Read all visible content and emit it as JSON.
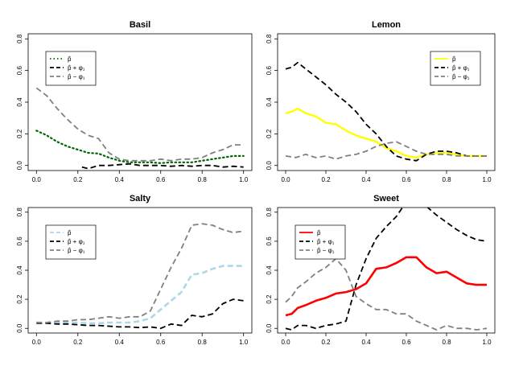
{
  "chart_data": [
    {
      "type": "line",
      "title": "Basil",
      "xlim": [
        0,
        1
      ],
      "ylim": [
        0,
        0.8
      ],
      "x_ticks": [
        "0.0",
        "0.2",
        "0.4",
        "0.6",
        "0.8",
        "1.0"
      ],
      "y_ticks": [
        "0.0",
        "0.2",
        "0.4",
        "0.6",
        "0.8"
      ],
      "legend_position": "top-left",
      "legend": [
        "p̂",
        "p̂ + φ₁",
        "p̂ − φ₁"
      ],
      "series": [
        {
          "name": "p̂",
          "color": "#006400",
          "dash": "dotted",
          "width": 2.2,
          "x": [
            0.0,
            0.05,
            0.1,
            0.15,
            0.2,
            0.25,
            0.3,
            0.35,
            0.4,
            0.45,
            0.5,
            0.55,
            0.6,
            0.65,
            0.7,
            0.75,
            0.8,
            0.85,
            0.9,
            0.95,
            1.0
          ],
          "y": [
            0.22,
            0.19,
            0.15,
            0.12,
            0.1,
            0.08,
            0.075,
            0.05,
            0.03,
            0.02,
            0.02,
            0.02,
            0.015,
            0.02,
            0.02,
            0.02,
            0.03,
            0.04,
            0.05,
            0.06,
            0.06
          ]
        },
        {
          "name": "p̂ + φ₁",
          "color": "#000000",
          "dash": "dashed",
          "width": 1.8,
          "x": [
            0.22,
            0.25,
            0.3,
            0.35,
            0.4,
            0.45,
            0.5,
            0.55,
            0.6,
            0.65,
            0.7,
            0.75,
            0.8,
            0.85,
            0.9,
            0.95,
            1.0
          ],
          "y": [
            -0.01,
            -0.02,
            0.0,
            0.0,
            0.005,
            0.01,
            0.0,
            0.0,
            0.0,
            -0.005,
            0.0,
            -0.005,
            0.0,
            0.0,
            -0.01,
            -0.005,
            -0.01
          ]
        },
        {
          "name": "p̂ − φ₁",
          "color": "#808080",
          "dash": "dashed",
          "width": 1.8,
          "x": [
            0.0,
            0.05,
            0.1,
            0.15,
            0.2,
            0.25,
            0.3,
            0.35,
            0.4,
            0.45,
            0.5,
            0.55,
            0.6,
            0.65,
            0.7,
            0.75,
            0.8,
            0.85,
            0.9,
            0.95,
            1.0
          ],
          "y": [
            0.49,
            0.44,
            0.36,
            0.29,
            0.23,
            0.19,
            0.17,
            0.08,
            0.04,
            0.03,
            0.03,
            0.03,
            0.04,
            0.03,
            0.04,
            0.04,
            0.05,
            0.08,
            0.1,
            0.13,
            0.13
          ]
        }
      ]
    },
    {
      "type": "line",
      "title": "Lemon",
      "xlim": [
        0,
        1
      ],
      "ylim": [
        0,
        0.8
      ],
      "x_ticks": [
        "0.0",
        "0.2",
        "0.4",
        "0.6",
        "0.8",
        "1.0"
      ],
      "y_ticks": [
        "0.0",
        "0.2",
        "0.4",
        "0.6",
        "0.8"
      ],
      "legend_position": "top-right",
      "legend": [
        "p̂",
        "p̂ + φ₁",
        "p̂ − φ₁"
      ],
      "series": [
        {
          "name": "p̂",
          "color": "#ffff00",
          "dash": "solid",
          "width": 2.4,
          "x": [
            0.0,
            0.03,
            0.06,
            0.1,
            0.15,
            0.2,
            0.25,
            0.3,
            0.35,
            0.4,
            0.45,
            0.5,
            0.55,
            0.6,
            0.65,
            0.7,
            0.75,
            0.8,
            0.85,
            0.9,
            0.95,
            1.0
          ],
          "y": [
            0.33,
            0.34,
            0.36,
            0.33,
            0.31,
            0.27,
            0.26,
            0.22,
            0.19,
            0.17,
            0.15,
            0.11,
            0.09,
            0.06,
            0.05,
            0.07,
            0.08,
            0.08,
            0.07,
            0.06,
            0.06,
            0.06
          ]
        },
        {
          "name": "p̂ + φ₁",
          "color": "#000000",
          "dash": "dashed",
          "width": 1.8,
          "x": [
            0.0,
            0.03,
            0.06,
            0.1,
            0.15,
            0.2,
            0.25,
            0.3,
            0.35,
            0.4,
            0.45,
            0.5,
            0.55,
            0.6,
            0.65,
            0.7,
            0.75,
            0.8,
            0.85,
            0.9,
            0.95,
            1.0
          ],
          "y": [
            0.61,
            0.62,
            0.65,
            0.61,
            0.56,
            0.51,
            0.45,
            0.4,
            0.34,
            0.26,
            0.2,
            0.12,
            0.06,
            0.04,
            0.03,
            0.07,
            0.09,
            0.09,
            0.08,
            0.06,
            0.06,
            0.06
          ]
        },
        {
          "name": "p̂ − φ₁",
          "color": "#808080",
          "dash": "dashed",
          "width": 1.8,
          "x": [
            0.0,
            0.05,
            0.1,
            0.15,
            0.2,
            0.25,
            0.3,
            0.35,
            0.4,
            0.45,
            0.5,
            0.55,
            0.6,
            0.65,
            0.7,
            0.75,
            0.8,
            0.85,
            0.9,
            0.95,
            1.0
          ],
          "y": [
            0.06,
            0.05,
            0.07,
            0.05,
            0.06,
            0.04,
            0.06,
            0.07,
            0.09,
            0.12,
            0.14,
            0.15,
            0.12,
            0.09,
            0.07,
            0.07,
            0.07,
            0.06,
            0.06,
            0.06,
            0.06
          ]
        }
      ]
    },
    {
      "type": "line",
      "title": "Salty",
      "xlim": [
        0,
        1
      ],
      "ylim": [
        0,
        0.8
      ],
      "x_ticks": [
        "0.0",
        "0.2",
        "0.4",
        "0.6",
        "0.8",
        "1.0"
      ],
      "y_ticks": [
        "0.0",
        "0.2",
        "0.4",
        "0.6",
        "0.8"
      ],
      "legend_position": "top-left",
      "legend": [
        "p̂",
        "p̂ + φ₁",
        "p̂ − φ₁"
      ],
      "series": [
        {
          "name": "p̂",
          "color": "#add8e6",
          "dash": "dashed",
          "width": 2.6,
          "x": [
            0.0,
            0.05,
            0.1,
            0.15,
            0.2,
            0.25,
            0.3,
            0.35,
            0.4,
            0.45,
            0.5,
            0.55,
            0.6,
            0.65,
            0.7,
            0.75,
            0.8,
            0.85,
            0.9,
            0.95,
            1.0
          ],
          "y": [
            0.04,
            0.04,
            0.04,
            0.04,
            0.04,
            0.035,
            0.035,
            0.04,
            0.04,
            0.04,
            0.05,
            0.07,
            0.13,
            0.19,
            0.25,
            0.37,
            0.38,
            0.41,
            0.43,
            0.43,
            0.43
          ]
        },
        {
          "name": "p̂ + φ₁",
          "color": "#000000",
          "dash": "dashed",
          "width": 1.8,
          "x": [
            0.0,
            0.05,
            0.1,
            0.15,
            0.2,
            0.25,
            0.3,
            0.35,
            0.4,
            0.45,
            0.5,
            0.55,
            0.6,
            0.65,
            0.7,
            0.75,
            0.8,
            0.85,
            0.9,
            0.95,
            1.0
          ],
          "y": [
            0.035,
            0.035,
            0.03,
            0.03,
            0.025,
            0.02,
            0.02,
            0.015,
            0.01,
            0.01,
            0.005,
            0.01,
            0.0,
            0.03,
            0.02,
            0.09,
            0.08,
            0.1,
            0.17,
            0.2,
            0.19
          ]
        },
        {
          "name": "p̂ − φ₁",
          "color": "#808080",
          "dash": "dashed",
          "width": 1.8,
          "x": [
            0.0,
            0.05,
            0.1,
            0.15,
            0.2,
            0.25,
            0.3,
            0.35,
            0.4,
            0.45,
            0.5,
            0.55,
            0.6,
            0.65,
            0.7,
            0.75,
            0.8,
            0.85,
            0.9,
            0.95,
            1.0
          ],
          "y": [
            0.04,
            0.04,
            0.05,
            0.05,
            0.06,
            0.06,
            0.07,
            0.08,
            0.07,
            0.08,
            0.08,
            0.12,
            0.27,
            0.42,
            0.55,
            0.71,
            0.72,
            0.71,
            0.68,
            0.66,
            0.67
          ]
        }
      ]
    },
    {
      "type": "line",
      "title": "Sweet",
      "xlim": [
        0,
        1
      ],
      "ylim": [
        0,
        0.8
      ],
      "x_ticks": [
        "0.0",
        "0.2",
        "0.4",
        "0.6",
        "0.8",
        "1.0"
      ],
      "y_ticks": [
        "0.0",
        "0.2",
        "0.4",
        "0.6",
        "0.8"
      ],
      "legend_position": "top-left",
      "legend": [
        "p̂",
        "p̂ + φ₁",
        "p̂ − φ₁"
      ],
      "series": [
        {
          "name": "p̂",
          "color": "#ff0000",
          "dash": "solid",
          "width": 2.6,
          "x": [
            0.0,
            0.03,
            0.06,
            0.1,
            0.15,
            0.2,
            0.25,
            0.3,
            0.35,
            0.4,
            0.45,
            0.5,
            0.55,
            0.6,
            0.65,
            0.7,
            0.75,
            0.8,
            0.85,
            0.9,
            0.95,
            1.0
          ],
          "y": [
            0.09,
            0.1,
            0.14,
            0.16,
            0.19,
            0.21,
            0.24,
            0.25,
            0.27,
            0.31,
            0.41,
            0.42,
            0.45,
            0.49,
            0.49,
            0.42,
            0.38,
            0.39,
            0.35,
            0.31,
            0.3,
            0.3
          ]
        },
        {
          "name": "p̂ + φ₁",
          "color": "#000000",
          "dash": "dashed",
          "width": 1.8,
          "x": [
            0.0,
            0.03,
            0.06,
            0.1,
            0.15,
            0.2,
            0.25,
            0.3,
            0.35,
            0.4,
            0.45,
            0.5,
            0.55,
            0.6,
            0.65,
            0.7,
            0.75,
            0.8,
            0.85,
            0.9,
            0.95,
            1.0
          ],
          "y": [
            0.0,
            -0.01,
            0.02,
            0.02,
            0.0,
            0.02,
            0.03,
            0.05,
            0.3,
            0.48,
            0.62,
            0.7,
            0.77,
            0.87,
            0.88,
            0.84,
            0.78,
            0.73,
            0.68,
            0.64,
            0.61,
            0.6
          ]
        },
        {
          "name": "p̂ − φ₁",
          "color": "#808080",
          "dash": "dashed",
          "width": 1.8,
          "x": [
            0.0,
            0.03,
            0.06,
            0.1,
            0.15,
            0.2,
            0.25,
            0.3,
            0.35,
            0.4,
            0.45,
            0.5,
            0.55,
            0.6,
            0.65,
            0.7,
            0.75,
            0.8,
            0.85,
            0.9,
            0.95,
            1.0
          ],
          "y": [
            0.18,
            0.22,
            0.28,
            0.32,
            0.38,
            0.42,
            0.48,
            0.4,
            0.22,
            0.17,
            0.13,
            0.13,
            0.1,
            0.1,
            0.05,
            0.02,
            -0.01,
            0.02,
            0.0,
            0.0,
            -0.01,
            0.0
          ]
        }
      ]
    }
  ]
}
